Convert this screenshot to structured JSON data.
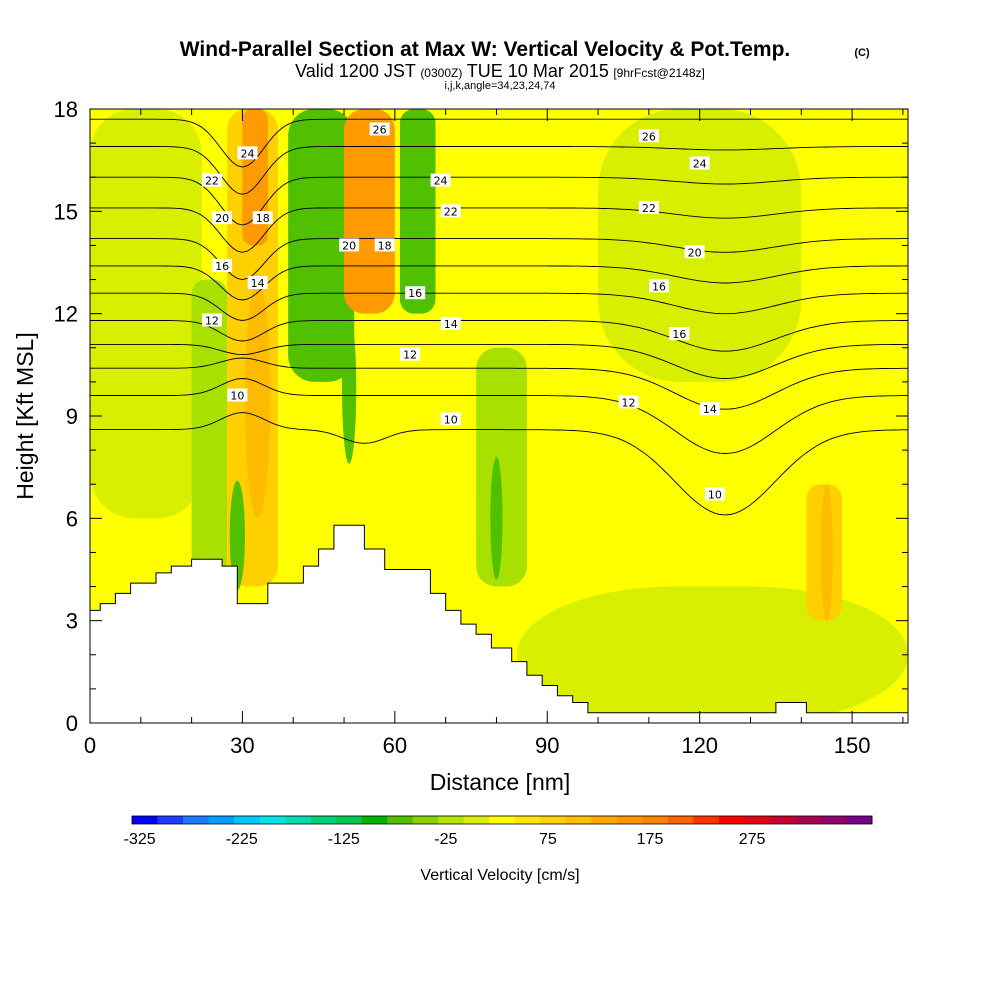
{
  "header": {
    "title": "Wind-Parallel Section at Max W: Vertical Velocity & Pot.Temp.",
    "title_mark": "(C)",
    "valid_prefix": "Valid 1200 JST",
    "valid_utc": "(0300Z)",
    "valid_date": "TUE 10 Mar 2015",
    "valid_fcst": "[9hrFcst@2148z]",
    "params": "i,j,k,angle=34,23,24,74"
  },
  "chart_data": {
    "type": "heatmap",
    "xlabel": "Distance [nm]",
    "ylabel": "Height [Kft MSL]",
    "xlim": [
      0,
      161
    ],
    "ylim": [
      0,
      18
    ],
    "x_ticks": [
      "0",
      "30",
      "60",
      "90",
      "120",
      "150"
    ],
    "x_tick_values": [
      0,
      30,
      60,
      90,
      120,
      150
    ],
    "y_ticks": [
      "0",
      "3",
      "6",
      "9",
      "12",
      "15",
      "18"
    ],
    "y_tick_values": [
      0,
      3,
      6,
      9,
      12,
      15,
      18
    ],
    "background_color": "#ffff00",
    "shading_bands": [
      {
        "x_range": [
          0,
          22
        ],
        "y_range": [
          6,
          18
        ],
        "color": "#d8f000"
      },
      {
        "x_range": [
          20,
          27
        ],
        "y_range": [
          2,
          13
        ],
        "color": "#a8e000"
      },
      {
        "x_range": [
          27,
          37
        ],
        "y_range": [
          4,
          18
        ],
        "color": "#ffd000"
      },
      {
        "x_range": [
          30,
          35
        ],
        "y_range": [
          14,
          18
        ],
        "color": "#ff9a00"
      },
      {
        "x_range": [
          39,
          52
        ],
        "y_range": [
          10,
          18
        ],
        "color": "#50c000"
      },
      {
        "x_range": [
          50,
          60
        ],
        "y_range": [
          12,
          18
        ],
        "color": "#ff9a00"
      },
      {
        "x_range": [
          61,
          68
        ],
        "y_range": [
          12,
          18
        ],
        "color": "#50c000"
      },
      {
        "x_range": [
          76,
          86
        ],
        "y_range": [
          4,
          11
        ],
        "color": "#a8e000"
      },
      {
        "x_range": [
          84,
          161
        ],
        "y_range": [
          0,
          4
        ],
        "color": "#d8f000"
      },
      {
        "x_range": [
          100,
          140
        ],
        "y_range": [
          10,
          18
        ],
        "color": "#d8f000"
      },
      {
        "x_range": [
          141,
          148
        ],
        "y_range": [
          3,
          7
        ],
        "color": "#ffd000"
      }
    ],
    "updraft_cores": [
      {
        "cx": 33,
        "cy": 9.5,
        "rx": 2.5,
        "ry": 3.5,
        "color": "#ffbb00"
      },
      {
        "cx": 29,
        "cy": 5.5,
        "rx": 1.5,
        "ry": 1.6,
        "color": "#50c000"
      },
      {
        "cx": 51,
        "cy": 9.8,
        "rx": 1.4,
        "ry": 2.2,
        "color": "#50c000"
      },
      {
        "cx": 80,
        "cy": 6,
        "rx": 1.2,
        "ry": 1.8,
        "color": "#50c000"
      },
      {
        "cx": 145,
        "cy": 5,
        "rx": 1.2,
        "ry": 2.0,
        "color": "#ffbb00"
      }
    ],
    "terrain": [
      [
        0,
        3.3
      ],
      [
        2,
        3.3
      ],
      [
        2,
        3.5
      ],
      [
        5,
        3.5
      ],
      [
        5,
        3.8
      ],
      [
        8,
        3.8
      ],
      [
        8,
        4.1
      ],
      [
        13,
        4.1
      ],
      [
        13,
        4.4
      ],
      [
        16,
        4.4
      ],
      [
        16,
        4.6
      ],
      [
        20,
        4.6
      ],
      [
        20,
        4.8
      ],
      [
        26,
        4.8
      ],
      [
        26,
        4.6
      ],
      [
        29,
        4.6
      ],
      [
        29,
        3.5
      ],
      [
        35,
        3.5
      ],
      [
        35,
        4.1
      ],
      [
        42,
        4.1
      ],
      [
        42,
        4.6
      ],
      [
        45,
        4.6
      ],
      [
        45,
        5.1
      ],
      [
        48,
        5.1
      ],
      [
        48,
        5.8
      ],
      [
        54,
        5.8
      ],
      [
        54,
        5.1
      ],
      [
        58,
        5.1
      ],
      [
        58,
        4.5
      ],
      [
        67,
        4.5
      ],
      [
        67,
        3.8
      ],
      [
        70,
        3.8
      ],
      [
        70,
        3.3
      ],
      [
        73,
        3.3
      ],
      [
        73,
        2.9
      ],
      [
        76,
        2.9
      ],
      [
        76,
        2.6
      ],
      [
        79,
        2.6
      ],
      [
        79,
        2.2
      ],
      [
        83,
        2.2
      ],
      [
        83,
        1.8
      ],
      [
        86,
        1.8
      ],
      [
        86,
        1.4
      ],
      [
        89,
        1.4
      ],
      [
        89,
        1.1
      ],
      [
        92,
        1.1
      ],
      [
        92,
        0.8
      ],
      [
        95,
        0.8
      ],
      [
        95,
        0.6
      ],
      [
        98,
        0.6
      ],
      [
        98,
        0.3
      ],
      [
        135,
        0.3
      ],
      [
        135,
        0.6
      ],
      [
        141,
        0.6
      ],
      [
        141,
        0.3
      ],
      [
        161,
        0.3
      ]
    ],
    "isentropes": [
      {
        "value": 10,
        "label": "10",
        "y0": 8.6,
        "dips": [
          {
            "x": 30,
            "dy": 0.5
          },
          {
            "x": 54,
            "dy": -0.4
          },
          {
            "x": 125,
            "dy": -2.5
          }
        ]
      },
      {
        "value": 11,
        "label": "",
        "y0": 9.6,
        "dips": [
          {
            "x": 30,
            "dy": 0.5
          },
          {
            "x": 125,
            "dy": -1.7
          }
        ]
      },
      {
        "value": 12,
        "label": "12",
        "y0": 10.4,
        "dips": [
          {
            "x": 30,
            "dy": 0.3
          },
          {
            "x": 125,
            "dy": -1.2
          }
        ]
      },
      {
        "value": 13,
        "label": "",
        "y0": 11.1,
        "dips": [
          {
            "x": 30,
            "dy": -0.3
          },
          {
            "x": 125,
            "dy": -1.0
          }
        ]
      },
      {
        "value": 14,
        "label": "14",
        "y0": 11.8,
        "dips": [
          {
            "x": 30,
            "dy": -0.6
          },
          {
            "x": 125,
            "dy": -0.9
          }
        ]
      },
      {
        "value": 16,
        "label": "16",
        "y0": 12.6,
        "dips": [
          {
            "x": 30,
            "dy": -0.8
          },
          {
            "x": 125,
            "dy": -0.6
          }
        ]
      },
      {
        "value": 18,
        "label": "18",
        "y0": 13.4,
        "dips": [
          {
            "x": 30,
            "dy": -1.0
          },
          {
            "x": 125,
            "dy": -0.5
          }
        ]
      },
      {
        "value": 20,
        "label": "20",
        "y0": 14.2,
        "dips": [
          {
            "x": 30,
            "dy": -1.2
          },
          {
            "x": 125,
            "dy": -0.4
          }
        ]
      },
      {
        "value": 22,
        "label": "22",
        "y0": 15.1,
        "dips": [
          {
            "x": 30,
            "dy": -1.3
          },
          {
            "x": 125,
            "dy": -0.3
          }
        ]
      },
      {
        "value": 24,
        "label": "24",
        "y0": 16.0,
        "dips": [
          {
            "x": 30,
            "dy": -1.4
          },
          {
            "x": 125,
            "dy": -0.2
          }
        ]
      },
      {
        "value": 26,
        "label": "26",
        "y0": 16.9,
        "dips": [
          {
            "x": 30,
            "dy": -1.4
          },
          {
            "x": 125,
            "dy": -0.1
          }
        ]
      },
      {
        "value": 27,
        "label": "",
        "y0": 17.7,
        "dips": [
          {
            "x": 30,
            "dy": -1.4
          }
        ]
      }
    ],
    "contour_labels": [
      {
        "text": "10",
        "x": 29,
        "y": 9.6
      },
      {
        "text": "10",
        "x": 71,
        "y": 8.9
      },
      {
        "text": "10",
        "x": 123,
        "y": 6.7
      },
      {
        "text": "12",
        "x": 24,
        "y": 11.8
      },
      {
        "text": "12",
        "x": 63,
        "y": 10.8
      },
      {
        "text": "12",
        "x": 106,
        "y": 9.4
      },
      {
        "text": "14",
        "x": 33,
        "y": 12.9
      },
      {
        "text": "14",
        "x": 71,
        "y": 11.7
      },
      {
        "text": "14",
        "x": 122,
        "y": 9.2
      },
      {
        "text": "16",
        "x": 26,
        "y": 13.4
      },
      {
        "text": "16",
        "x": 64,
        "y": 12.6
      },
      {
        "text": "16",
        "x": 112,
        "y": 12.8
      },
      {
        "text": "16",
        "x": 116,
        "y": 11.4
      },
      {
        "text": "18",
        "x": 34,
        "y": 14.8
      },
      {
        "text": "18",
        "x": 58,
        "y": 14.0
      },
      {
        "text": "20",
        "x": 26,
        "y": 14.8
      },
      {
        "text": "20",
        "x": 51,
        "y": 14.0
      },
      {
        "text": "20",
        "x": 119,
        "y": 13.8
      },
      {
        "text": "22",
        "x": 24,
        "y": 15.9
      },
      {
        "text": "22",
        "x": 71,
        "y": 15.0
      },
      {
        "text": "22",
        "x": 110,
        "y": 15.1
      },
      {
        "text": "24",
        "x": 31,
        "y": 16.7
      },
      {
        "text": "24",
        "x": 69,
        "y": 15.9
      },
      {
        "text": "24",
        "x": 120,
        "y": 16.4
      },
      {
        "text": "26",
        "x": 57,
        "y": 17.4
      },
      {
        "text": "26",
        "x": 110,
        "y": 17.2
      }
    ]
  },
  "colorbar": {
    "label": "Vertical Velocity [cm/s]",
    "tick_labels": [
      "-325",
      "-225",
      "-125",
      "-25",
      "75",
      "175",
      "275"
    ],
    "colors": [
      "#0000ff",
      "#1e3cff",
      "#1e78ff",
      "#00a0ff",
      "#00c8ff",
      "#00e6e6",
      "#00dcb4",
      "#00d278",
      "#00c850",
      "#00b400",
      "#50c000",
      "#8cd200",
      "#b4e600",
      "#dcf000",
      "#ffff00",
      "#ffe600",
      "#ffd200",
      "#ffbe00",
      "#ffaa00",
      "#ff9600",
      "#ff8200",
      "#ff6400",
      "#ff3200",
      "#ff0000",
      "#e60014",
      "#c80032",
      "#aa0050",
      "#96006e",
      "#78008c"
    ]
  }
}
